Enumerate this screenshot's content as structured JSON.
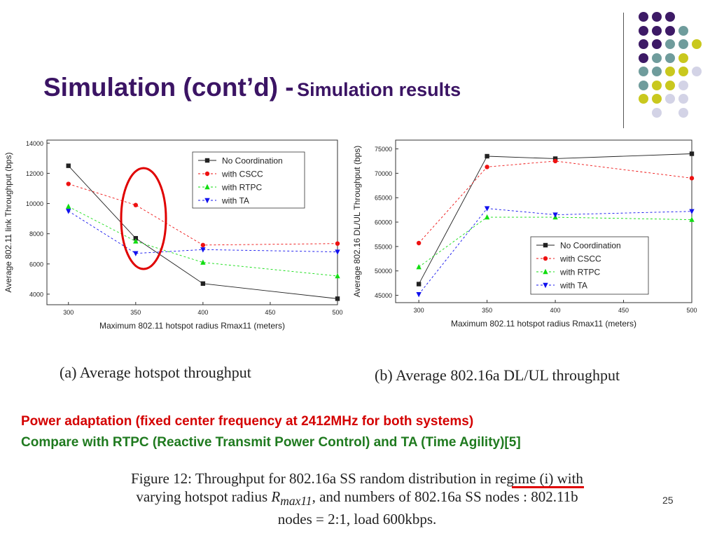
{
  "slide": {
    "title_main": "Simulation (cont’d) -",
    "title_sub": "Simulation results",
    "caption_a": "(a) Average hotspot throughput",
    "caption_b": "(b) Average 802.16a DL/UL throughput",
    "line_red": "Power adaptation (fixed center frequency at 2412MHz for both systems)",
    "line_green": "Compare with RTPC (Reactive Transmit Power Control) and TA (Time Agility)[5]",
    "figure_line1": "Figure 12: Throughput for 802.16a SS random distribution in regime (i) with",
    "figure_line2_a": "varying hotspot radius ",
    "figure_line2_r": "R",
    "figure_line2_sub": "max11",
    "figure_line2_b": ", and numbers of 802.16a SS nodes : 802.11b",
    "figure_line3": "nodes = 2:1, load 600kbps.",
    "page_number": "25",
    "colors": {
      "title": "#3b1464",
      "red": "#d40000",
      "green": "#1f7a1f",
      "highlight_ellipse": "#e00000"
    },
    "decor_dot_colors": [
      "#3d1a66",
      "#6f9c9c",
      "#c9c81e",
      "#d3d3e6"
    ]
  },
  "chart_data": [
    {
      "type": "line",
      "x": [
        300,
        350,
        400,
        500
      ],
      "xticks": [
        300,
        350,
        400,
        450,
        500
      ],
      "xlabel": "Maximum 802.11 hotspot radius Rmax11 (meters)",
      "ylabel": "Average 802.11 link Throughput (bps)",
      "yticks": [
        4000,
        6000,
        8000,
        10000,
        12000,
        14000
      ],
      "xlim": [
        284,
        500
      ],
      "ylim": [
        3300,
        14200
      ],
      "grid": false,
      "legend": "top-right",
      "series": [
        {
          "name": "No Coordination",
          "values": [
            12500,
            7700,
            4700,
            3700
          ],
          "color": "#222222",
          "marker": "square",
          "dash": ""
        },
        {
          "name": "with CSCC",
          "values": [
            11300,
            9900,
            7250,
            7350
          ],
          "color": "#ee1111",
          "marker": "circle",
          "dash": "3,3"
        },
        {
          "name": "with RTPC",
          "values": [
            9800,
            7500,
            6100,
            5200
          ],
          "color": "#11dd11",
          "marker": "triangle-up",
          "dash": "3,3"
        },
        {
          "name": "with TA",
          "values": [
            9500,
            6700,
            6950,
            6800
          ],
          "color": "#1111ee",
          "marker": "triangle-down",
          "dash": "3,3"
        }
      ]
    },
    {
      "type": "line",
      "x": [
        300,
        350,
        400,
        500
      ],
      "xticks": [
        300,
        350,
        400,
        450,
        500
      ],
      "xlabel": "Maximum 802.11 hotspot radius Rmax11 (meters)",
      "ylabel": "Average 802.16 DL/UL Throughput (bps)",
      "yticks": [
        45000,
        50000,
        55000,
        60000,
        65000,
        70000,
        75000
      ],
      "xlim": [
        283,
        500
      ],
      "ylim": [
        43500,
        76800
      ],
      "grid": false,
      "legend": "bottom-right",
      "series": [
        {
          "name": "No Coordination",
          "values": [
            47300,
            73500,
            73000,
            74000
          ],
          "color": "#222222",
          "marker": "square",
          "dash": ""
        },
        {
          "name": "with CSCC",
          "values": [
            55700,
            71300,
            72500,
            69000
          ],
          "color": "#ee1111",
          "marker": "circle",
          "dash": "3,3"
        },
        {
          "name": "with RTPC",
          "values": [
            50800,
            61000,
            61000,
            60500
          ],
          "color": "#11dd11",
          "marker": "triangle-up",
          "dash": "3,3"
        },
        {
          "name": "with TA",
          "values": [
            45200,
            62800,
            61500,
            62200
          ],
          "color": "#1111ee",
          "marker": "triangle-down",
          "dash": "3,3"
        }
      ]
    }
  ]
}
